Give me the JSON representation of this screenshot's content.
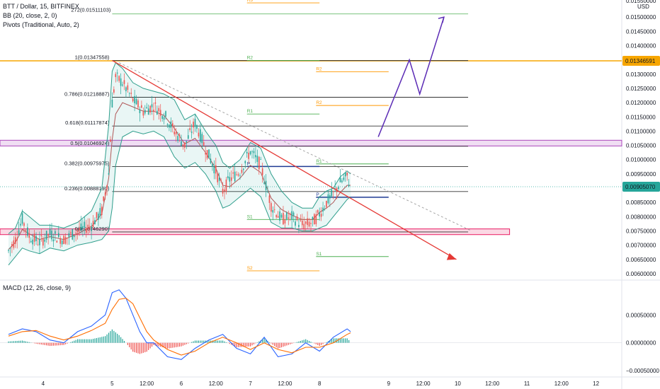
{
  "legend": {
    "symbol": "BTT / Dollar, 15, BITFINEX",
    "bb": "BB (20, close, 2, 0)",
    "pivots": "Pivots (Traditional, Auto, 2)",
    "macd": "MACD (12, 26, close, 9)"
  },
  "axis": {
    "currency": "USD",
    "top_partial": "0.01550000"
  },
  "colors": {
    "price_up": "#26a69a",
    "price_down": "#ef5350",
    "bb_band": "#2e9e8c",
    "bb_basis": "#b05757",
    "fib_line": "#333333",
    "pivot_p": "#1f3a93",
    "pivot_s_r": "#4caf50",
    "pivot_alt": "#ff9800",
    "trend_red": "#e53935",
    "projection": "#5b2bb5",
    "macd_line": "#2962ff",
    "signal_line": "#ff6d00",
    "current_price_bg": "#26a69a",
    "orange_level_bg": "#f7a600"
  },
  "chart_data": [
    {
      "type": "line",
      "title": "BTT / Dollar, 15, BITFINEX",
      "ylim": [
        0.0058,
        0.0156
      ],
      "y_ticks": [
        "0.01500000",
        "0.01450000",
        "0.01400000",
        "0.01350000",
        "0.01300000",
        "0.01250000",
        "0.01200000",
        "0.01150000",
        "0.01100000",
        "0.01050000",
        "0.01000000",
        "0.00950000",
        "0.00900000",
        "0.00850000",
        "0.00800000",
        "0.00750000",
        "0.00700000",
        "0.00650000",
        "0.00600000"
      ],
      "y_tick_values": [
        0.015,
        0.0145,
        0.014,
        0.0135,
        0.013,
        0.0125,
        0.012,
        0.0115,
        0.011,
        0.0105,
        0.01,
        0.0095,
        0.009,
        0.0085,
        0.008,
        0.0075,
        0.007,
        0.0065,
        0.006
      ],
      "x_ticks": [
        {
          "label": "4",
          "t": 0.5
        },
        {
          "label": "5",
          "t": 1.5
        },
        {
          "label": "12:00",
          "t": 2.0
        },
        {
          "label": "6",
          "t": 2.5
        },
        {
          "label": "12:00",
          "t": 3.0
        },
        {
          "label": "7",
          "t": 3.5
        },
        {
          "label": "12:00",
          "t": 4.0
        },
        {
          "label": "8",
          "t": 4.5
        },
        {
          "label": "9",
          "t": 5.5
        },
        {
          "label": "12:00",
          "t": 6.0
        },
        {
          "label": "10",
          "t": 6.5
        },
        {
          "label": "12:00",
          "t": 7.0
        },
        {
          "label": "11",
          "t": 7.5
        },
        {
          "label": "12:00",
          "t": 8.0
        },
        {
          "label": "12",
          "t": 8.5
        }
      ],
      "price_series": {
        "name": "BTT / Dollar",
        "t": [
          0.0,
          0.1,
          0.2,
          0.3,
          0.45,
          0.6,
          0.8,
          1.0,
          1.2,
          1.35,
          1.45,
          1.5,
          1.55,
          1.65,
          1.8,
          1.95,
          2.1,
          2.25,
          2.4,
          2.55,
          2.7,
          2.85,
          3.0,
          3.1,
          3.2,
          3.35,
          3.5,
          3.65,
          3.8,
          3.95,
          4.1,
          4.25,
          4.4,
          4.5,
          4.6,
          4.7,
          4.8,
          4.9,
          4.95
        ],
        "values": [
          0.0068,
          0.0072,
          0.0079,
          0.0073,
          0.0071,
          0.0074,
          0.0072,
          0.0075,
          0.0077,
          0.0082,
          0.0095,
          0.012,
          0.0129,
          0.0127,
          0.0121,
          0.0117,
          0.0119,
          0.0116,
          0.011,
          0.0105,
          0.0113,
          0.0104,
          0.0096,
          0.0089,
          0.0093,
          0.0096,
          0.0103,
          0.0098,
          0.0084,
          0.0079,
          0.008,
          0.0077,
          0.0078,
          0.0081,
          0.0085,
          0.0088,
          0.0092,
          0.0094,
          0.00905
        ]
      },
      "bb_upper": [
        0.0074,
        0.0076,
        0.0082,
        0.008,
        0.0077,
        0.0077,
        0.0076,
        0.0078,
        0.0082,
        0.009,
        0.0112,
        0.0131,
        0.0134,
        0.0132,
        0.0127,
        0.0125,
        0.0124,
        0.0123,
        0.0121,
        0.0114,
        0.0116,
        0.011,
        0.0105,
        0.0099,
        0.0097,
        0.01,
        0.0106,
        0.0104,
        0.0095,
        0.0089,
        0.0085,
        0.0083,
        0.0083,
        0.0087,
        0.0089,
        0.009,
        0.0094,
        0.0096,
        0.0095
      ],
      "bb_lower": [
        0.0063,
        0.0066,
        0.0069,
        0.0068,
        0.0067,
        0.0069,
        0.0068,
        0.007,
        0.0071,
        0.0072,
        0.0075,
        0.0083,
        0.0098,
        0.0108,
        0.011,
        0.0109,
        0.011,
        0.0108,
        0.0101,
        0.0097,
        0.0099,
        0.0095,
        0.0089,
        0.0083,
        0.0084,
        0.0087,
        0.009,
        0.0087,
        0.0078,
        0.0076,
        0.0076,
        0.0075,
        0.0075,
        0.0076,
        0.0077,
        0.008,
        0.0083,
        0.0086,
        0.0087
      ],
      "bb_basis": [
        0.00685,
        0.0071,
        0.00755,
        0.0074,
        0.0072,
        0.0073,
        0.0072,
        0.0074,
        0.00765,
        0.0081,
        0.00935,
        0.0107,
        0.0116,
        0.012,
        0.01185,
        0.0117,
        0.0117,
        0.01155,
        0.0111,
        0.01055,
        0.01075,
        0.01025,
        0.0097,
        0.0091,
        0.00905,
        0.00935,
        0.0098,
        0.00955,
        0.00865,
        0.00825,
        0.00805,
        0.0079,
        0.0079,
        0.00815,
        0.0083,
        0.0085,
        0.00885,
        0.0091,
        0.0091
      ],
      "fib_levels": [
        {
          "label": "1(0.01347558)",
          "value": 0.01347558
        },
        {
          "label": "0.786(0.01218887)",
          "value": 0.01218887
        },
        {
          "label": "0.618(0.01117874)",
          "value": 0.01117874
        },
        {
          "label": "0.5(0.01046924)",
          "value": 0.01046924
        },
        {
          "label": "0.382(0.00975975)",
          "value": 0.00975975
        },
        {
          "label": "0.236(0.00888190)",
          "value": 0.0088819
        },
        {
          "label": "0(0.00746290)",
          "value": 0.0074629
        }
      ],
      "fib_extension": {
        "label": "272(0.01511103)",
        "value": 0.01511103
      },
      "pivots_old": [
        {
          "label": "R3",
          "value": 0.0155
        },
        {
          "label": "R2",
          "value": 0.01348
        },
        {
          "label": "R1",
          "value": 0.0116
        },
        {
          "label": "P",
          "value": 0.00976
        },
        {
          "label": "S1",
          "value": 0.0079
        },
        {
          "label": "S2",
          "value": 0.0061
        }
      ],
      "pivots_new": [
        {
          "label": "R2",
          "value": 0.01308
        },
        {
          "label": "R2",
          "value": 0.0119
        },
        {
          "label": "R1",
          "value": 0.00985
        },
        {
          "label": "P",
          "value": 0.00868
        },
        {
          "label": "S1",
          "value": 0.0066
        }
      ],
      "resistance_zone": [
        0.01048,
        0.01068
      ],
      "support_zone": [
        0.00737,
        0.00757
      ],
      "orange_level": 0.01346591,
      "current_price": 0.0090507,
      "price_labels": [
        "0.01346591",
        "0.00905070"
      ]
    },
    {
      "type": "bar",
      "title": "MACD (12, 26, close, 9)",
      "ylim": [
        -0.00055,
        0.0011
      ],
      "y_ticks": [
        "0.00050000",
        "0.00000000",
        "−0.00050000"
      ],
      "y_tick_values": [
        0.0005,
        0.0,
        -0.0005
      ],
      "t": [
        0.0,
        0.2,
        0.4,
        0.6,
        0.8,
        1.0,
        1.2,
        1.4,
        1.5,
        1.6,
        1.7,
        1.8,
        1.9,
        2.0,
        2.1,
        2.3,
        2.5,
        2.7,
        2.9,
        3.1,
        3.3,
        3.5,
        3.7,
        3.9,
        4.1,
        4.3,
        4.5,
        4.7,
        4.9,
        4.95
      ],
      "macd": [
        0.00015,
        0.00025,
        0.0002,
        5e-05,
        0.0,
        0.0002,
        0.0003,
        0.0005,
        0.0009,
        0.00095,
        0.0008,
        0.0005,
        0.0002,
        0.0,
        0.0,
        -0.00025,
        -0.0003,
        -0.0001,
        5e-05,
        0.00015,
        -0.0001,
        -0.0002,
        0.0001,
        -0.00025,
        -0.0002,
        0.0,
        -0.00015,
        0.0001,
        0.00025,
        0.0002
      ],
      "signal": [
        0.00012,
        0.0002,
        0.00022,
        0.00012,
        5e-05,
        0.00012,
        0.00022,
        0.00035,
        0.0006,
        0.00078,
        0.0008,
        0.0007,
        0.00045,
        0.0002,
        5e-05,
        -0.00012,
        -0.00022,
        -0.00015,
        0.0,
        0.0001,
        0.0,
        -0.00012,
        0.0,
        -0.00012,
        -0.00018,
        -8e-05,
        -8e-05,
        0.0,
        0.00015,
        0.00018
      ]
    }
  ]
}
